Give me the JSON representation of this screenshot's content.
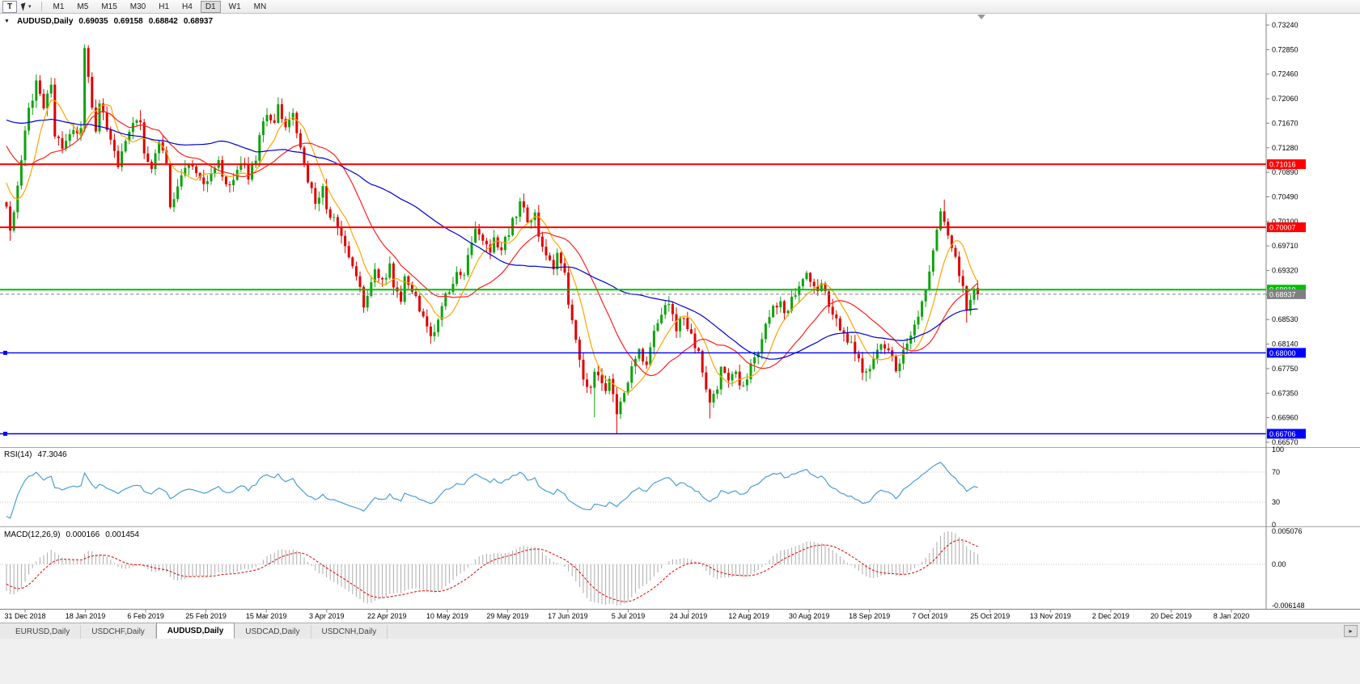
{
  "toolbar": {
    "text_tool": "T",
    "cursor_dropdown_icon": "▾",
    "timeframes": [
      "M1",
      "M5",
      "M15",
      "M30",
      "H1",
      "H4",
      "D1",
      "W1",
      "MN"
    ],
    "active_timeframe": "D1"
  },
  "chart": {
    "collapse_icon": "▼",
    "symbol_label": "AUDUSD,Daily",
    "open": "0.69035",
    "high": "0.69158",
    "low": "0.68842",
    "close": "0.68937"
  },
  "price_axis": {
    "labels": [
      "0.73240",
      "0.72850",
      "0.72460",
      "0.72060",
      "0.71670",
      "0.71280",
      "0.70890",
      "0.70490",
      "0.70100",
      "0.69710",
      "0.69320",
      "0.68920",
      "0.68530",
      "0.68140",
      "0.67750",
      "0.67350",
      "0.66960",
      "0.66570"
    ]
  },
  "hlines": [
    {
      "label": "0.71016",
      "value": 0.71016,
      "color": "#FF0000",
      "width": 2
    },
    {
      "label": "0.70007",
      "value": 0.70007,
      "color": "#FF0000",
      "width": 2
    },
    {
      "label": "0.69010",
      "value": 0.6901,
      "color": "#00C000",
      "width": 2
    },
    {
      "label": "0.68937",
      "value": 0.68937,
      "color": "#808080",
      "width": 1,
      "dashed": true
    },
    {
      "label": "0.68000",
      "value": 0.68,
      "color": "#0000FF",
      "width": 1.4,
      "handles": true
    },
    {
      "label": "0.66706",
      "value": 0.66706,
      "color": "#0000FF",
      "width": 1.4,
      "handles": true
    }
  ],
  "rsi": {
    "label": "RSI(14)",
    "value": "47.3046",
    "color": "#4A9ED6",
    "levels": [
      {
        "text": "100",
        "v": 100
      },
      {
        "text": "70",
        "v": 70
      },
      {
        "text": "30",
        "v": 30
      },
      {
        "text": "0",
        "v": 0
      }
    ]
  },
  "macd": {
    "label": "MACD(12,26,9)",
    "value_main": "0.000166",
    "value_signal": "0.001454",
    "axis": [
      {
        "text": "0.005076",
        "pos": "top"
      },
      {
        "text": "0.00",
        "pos": "zero"
      },
      {
        "text": "-0.006148",
        "pos": "bottom"
      }
    ]
  },
  "date_axis": [
    "31 Dec 2018",
    "18 Jan 2019",
    "6 Feb 2019",
    "25 Feb 2019",
    "15 Mar 2019",
    "3 Apr 2019",
    "22 Apr 2019",
    "10 May 2019",
    "29 May 2019",
    "17 Jun 2019",
    "5 Jul 2019",
    "24 Jul 2019",
    "12 Aug 2019",
    "30 Aug 2019",
    "18 Sep 2019",
    "7 Oct 2019",
    "25 Oct 2019",
    "13 Nov 2019",
    "2 Dec 2019",
    "20 Dec 2019",
    "8 Jan 2020"
  ],
  "tabs": {
    "items": [
      "EURUSD,Daily",
      "USDCHF,Daily",
      "AUDUSD,Daily",
      "USDCAD,Daily",
      "USDCNH,Daily"
    ],
    "active": "AUDUSD,Daily",
    "scroll_icon": "▸"
  },
  "chart_data": {
    "type": "candlestick",
    "symbol": "AUDUSD",
    "timeframe": "Daily",
    "up_color": "#0EA30E",
    "down_color": "#E00000",
    "visible_range": {
      "price_max": 0.7324,
      "price_min": 0.6657
    },
    "bars_visible": 261,
    "last_ohlc": {
      "open": 0.69035,
      "high": 0.69158,
      "low": 0.68842,
      "close": 0.68937
    },
    "levels": [
      0.71016,
      0.70007,
      0.6901,
      0.68,
      0.66706
    ],
    "indicators": {
      "rsi_period": 14,
      "macd_fast": 12,
      "macd_slow": 26,
      "macd_signal": 9,
      "rsi_last": 47.3046,
      "macd_last": 0.000166,
      "macd_signal_last": 0.001454
    },
    "moving_averages": [
      {
        "period": 8,
        "color": "#FFA500"
      },
      {
        "period": 21,
        "color": "#FF2020"
      },
      {
        "period": 55,
        "color": "#0000D0"
      }
    ],
    "price_path_anchors": [
      [
        -58,
        0.708
      ],
      [
        -44,
        0.718
      ],
      [
        -30,
        0.7255
      ],
      [
        -17,
        0.719
      ],
      [
        -7,
        0.711
      ],
      [
        -2,
        0.7055
      ],
      [
        0,
        0.704
      ],
      [
        1,
        0.699
      ],
      [
        4,
        0.7105
      ],
      [
        6,
        0.719
      ],
      [
        8,
        0.723
      ],
      [
        10,
        0.7195
      ],
      [
        12,
        0.7225
      ],
      [
        13,
        0.715
      ],
      [
        15,
        0.7125
      ],
      [
        18,
        0.716
      ],
      [
        20,
        0.7155
      ],
      [
        21,
        0.728
      ],
      [
        22,
        0.724
      ],
      [
        24,
        0.715
      ],
      [
        25,
        0.72
      ],
      [
        27,
        0.7155
      ],
      [
        29,
        0.712
      ],
      [
        30,
        0.7095
      ],
      [
        32,
        0.7135
      ],
      [
        34,
        0.7165
      ],
      [
        36,
        0.7175
      ],
      [
        37,
        0.7125
      ],
      [
        39,
        0.7095
      ],
      [
        41,
        0.7135
      ],
      [
        43,
        0.71
      ],
      [
        44,
        0.704
      ],
      [
        46,
        0.7065
      ],
      [
        48,
        0.709
      ],
      [
        50,
        0.7105
      ],
      [
        52,
        0.7075
      ],
      [
        53,
        0.707
      ],
      [
        55,
        0.709
      ],
      [
        57,
        0.711
      ],
      [
        58,
        0.7085
      ],
      [
        60,
        0.7065
      ],
      [
        61,
        0.708
      ],
      [
        63,
        0.7105
      ],
      [
        65,
        0.7085
      ],
      [
        67,
        0.7105
      ],
      [
        68,
        0.715
      ],
      [
        70,
        0.718
      ],
      [
        72,
        0.716
      ],
      [
        73,
        0.7195
      ],
      [
        75,
        0.716
      ],
      [
        77,
        0.718
      ],
      [
        78,
        0.7145
      ],
      [
        80,
        0.711
      ],
      [
        81,
        0.7075
      ],
      [
        83,
        0.704
      ],
      [
        85,
        0.7065
      ],
      [
        86,
        0.703
      ],
      [
        88,
        0.701
      ],
      [
        90,
        0.6995
      ],
      [
        91,
        0.6975
      ],
      [
        93,
        0.694
      ],
      [
        95,
        0.69
      ],
      [
        96,
        0.687
      ],
      [
        98,
        0.6905
      ],
      [
        99,
        0.693
      ],
      [
        101,
        0.691
      ],
      [
        103,
        0.6935
      ],
      [
        104,
        0.6905
      ],
      [
        106,
        0.6885
      ],
      [
        107,
        0.692
      ],
      [
        109,
        0.69
      ],
      [
        111,
        0.687
      ],
      [
        112,
        0.6855
      ],
      [
        114,
        0.683
      ],
      [
        116,
        0.6845
      ],
      [
        117,
        0.6875
      ],
      [
        119,
        0.69
      ],
      [
        121,
        0.693
      ],
      [
        123,
        0.6925
      ],
      [
        124,
        0.696
      ],
      [
        126,
        0.6995
      ],
      [
        128,
        0.6975
      ],
      [
        130,
        0.696
      ],
      [
        131,
        0.6985
      ],
      [
        133,
        0.6965
      ],
      [
        135,
        0.6995
      ],
      [
        137,
        0.7025
      ],
      [
        138,
        0.704
      ],
      [
        140,
        0.701
      ],
      [
        142,
        0.702
      ],
      [
        143,
        0.6985
      ],
      [
        145,
        0.696
      ],
      [
        147,
        0.694
      ],
      [
        148,
        0.6965
      ],
      [
        150,
        0.693
      ],
      [
        151,
        0.688
      ],
      [
        153,
        0.682
      ],
      [
        154,
        0.6785
      ],
      [
        155,
        0.676
      ],
      [
        157,
        0.6745
      ],
      [
        158,
        0.677
      ],
      [
        160,
        0.6755
      ],
      [
        161,
        0.6735
      ],
      [
        162,
        0.6755
      ],
      [
        164,
        0.67
      ],
      [
        165,
        0.6725
      ],
      [
        167,
        0.676
      ],
      [
        168,
        0.6785
      ],
      [
        170,
        0.681
      ],
      [
        172,
        0.6775
      ],
      [
        173,
        0.681
      ],
      [
        175,
        0.6855
      ],
      [
        177,
        0.688
      ],
      [
        179,
        0.6865
      ],
      [
        180,
        0.684
      ],
      [
        182,
        0.686
      ],
      [
        184,
        0.6825
      ],
      [
        186,
        0.68
      ],
      [
        187,
        0.677
      ],
      [
        189,
        0.672
      ],
      [
        191,
        0.6745
      ],
      [
        192,
        0.677
      ],
      [
        194,
        0.6755
      ],
      [
        196,
        0.6775
      ],
      [
        197,
        0.674
      ],
      [
        199,
        0.6765
      ],
      [
        201,
        0.679
      ],
      [
        203,
        0.6815
      ],
      [
        204,
        0.684
      ],
      [
        206,
        0.687
      ],
      [
        208,
        0.688
      ],
      [
        210,
        0.686
      ],
      [
        211,
        0.6885
      ],
      [
        213,
        0.691
      ],
      [
        215,
        0.692
      ],
      [
        217,
        0.69
      ],
      [
        219,
        0.691
      ],
      [
        221,
        0.688
      ],
      [
        223,
        0.6855
      ],
      [
        225,
        0.683
      ],
      [
        227,
        0.681
      ],
      [
        229,
        0.6785
      ],
      [
        231,
        0.6765
      ],
      [
        233,
        0.679
      ],
      [
        235,
        0.6815
      ],
      [
        237,
        0.68
      ],
      [
        239,
        0.6775
      ],
      [
        241,
        0.68
      ],
      [
        243,
        0.683
      ],
      [
        245,
        0.686
      ],
      [
        247,
        0.69
      ],
      [
        249,
        0.696
      ],
      [
        251,
        0.702
      ],
      [
        253,
        0.699
      ],
      [
        255,
        0.695
      ],
      [
        257,
        0.69
      ],
      [
        258,
        0.6865
      ],
      [
        260,
        0.6905
      ],
      [
        261,
        0.68937
      ]
    ],
    "spikes": [
      {
        "bar": 1,
        "low": 0.6979
      },
      {
        "bar": 8,
        "high": 0.7245
      },
      {
        "bar": 21,
        "high": 0.7293
      },
      {
        "bar": 36,
        "high": 0.7188
      },
      {
        "bar": 73,
        "high": 0.7207
      },
      {
        "bar": 96,
        "low": 0.6864
      },
      {
        "bar": 114,
        "low": 0.682
      },
      {
        "bar": 126,
        "high": 0.701
      },
      {
        "bar": 138,
        "high": 0.7048
      },
      {
        "bar": 158,
        "low": 0.6697
      },
      {
        "bar": 164,
        "low": 0.66706
      },
      {
        "bar": 189,
        "low": 0.6695
      },
      {
        "bar": 215,
        "high": 0.6929
      },
      {
        "bar": 231,
        "low": 0.6754
      },
      {
        "bar": 252,
        "high": 0.7045
      },
      {
        "bar": 258,
        "low": 0.6848
      }
    ]
  }
}
